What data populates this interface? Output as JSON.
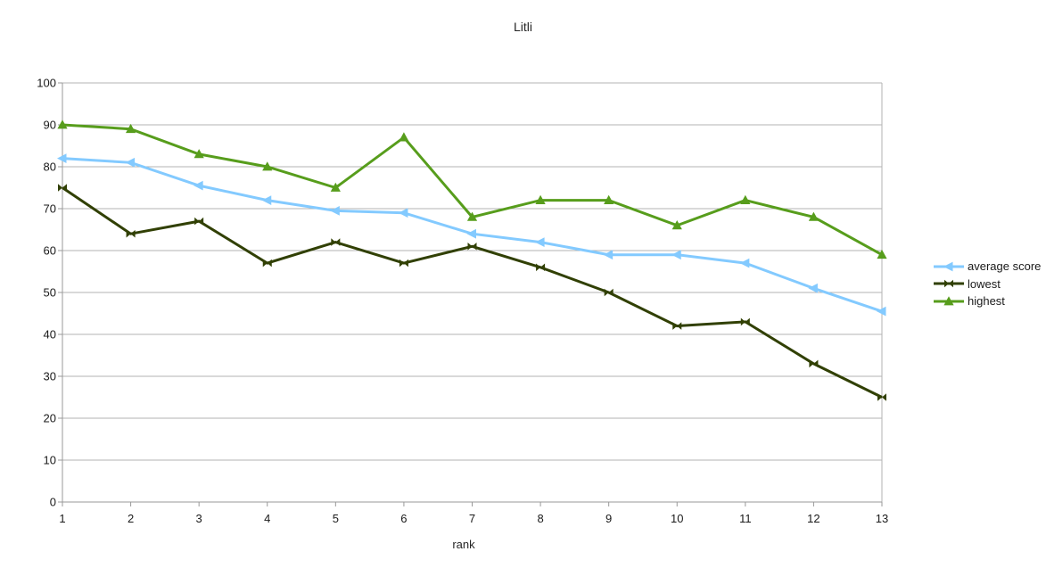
{
  "chart_data": {
    "type": "line",
    "title": "Litli",
    "xlabel": "rank",
    "ylabel": "",
    "x": [
      1,
      2,
      3,
      4,
      5,
      6,
      7,
      8,
      9,
      10,
      11,
      12,
      13
    ],
    "x_ticks": [
      1,
      2,
      3,
      4,
      5,
      6,
      7,
      8,
      9,
      10,
      11,
      12,
      13
    ],
    "y_ticks": [
      0,
      10,
      20,
      30,
      40,
      50,
      60,
      70,
      80,
      90,
      100
    ],
    "xlim": [
      1,
      13
    ],
    "ylim": [
      0,
      100
    ],
    "grid": "horizontal",
    "legend_position": "right",
    "series": [
      {
        "name": "average score",
        "color": "#83CAFF",
        "marker": "triangle-left",
        "values": [
          82,
          81,
          75.5,
          72,
          69.5,
          69,
          64,
          62,
          59,
          59,
          57,
          51,
          45.5
        ]
      },
      {
        "name": "lowest",
        "color": "#314004",
        "marker": "bowtie",
        "values": [
          75,
          64,
          67,
          57,
          62,
          57,
          61,
          56,
          50,
          42,
          43,
          33,
          25
        ]
      },
      {
        "name": "highest",
        "color": "#579D1C",
        "marker": "triangle-up",
        "values": [
          90,
          89,
          83,
          80,
          75,
          87,
          68,
          72,
          72,
          66,
          72,
          68,
          59
        ]
      }
    ],
    "colors": {
      "grid": "#b3b3b3",
      "axis": "#999999",
      "tick_text": "#1a1a1a"
    }
  }
}
